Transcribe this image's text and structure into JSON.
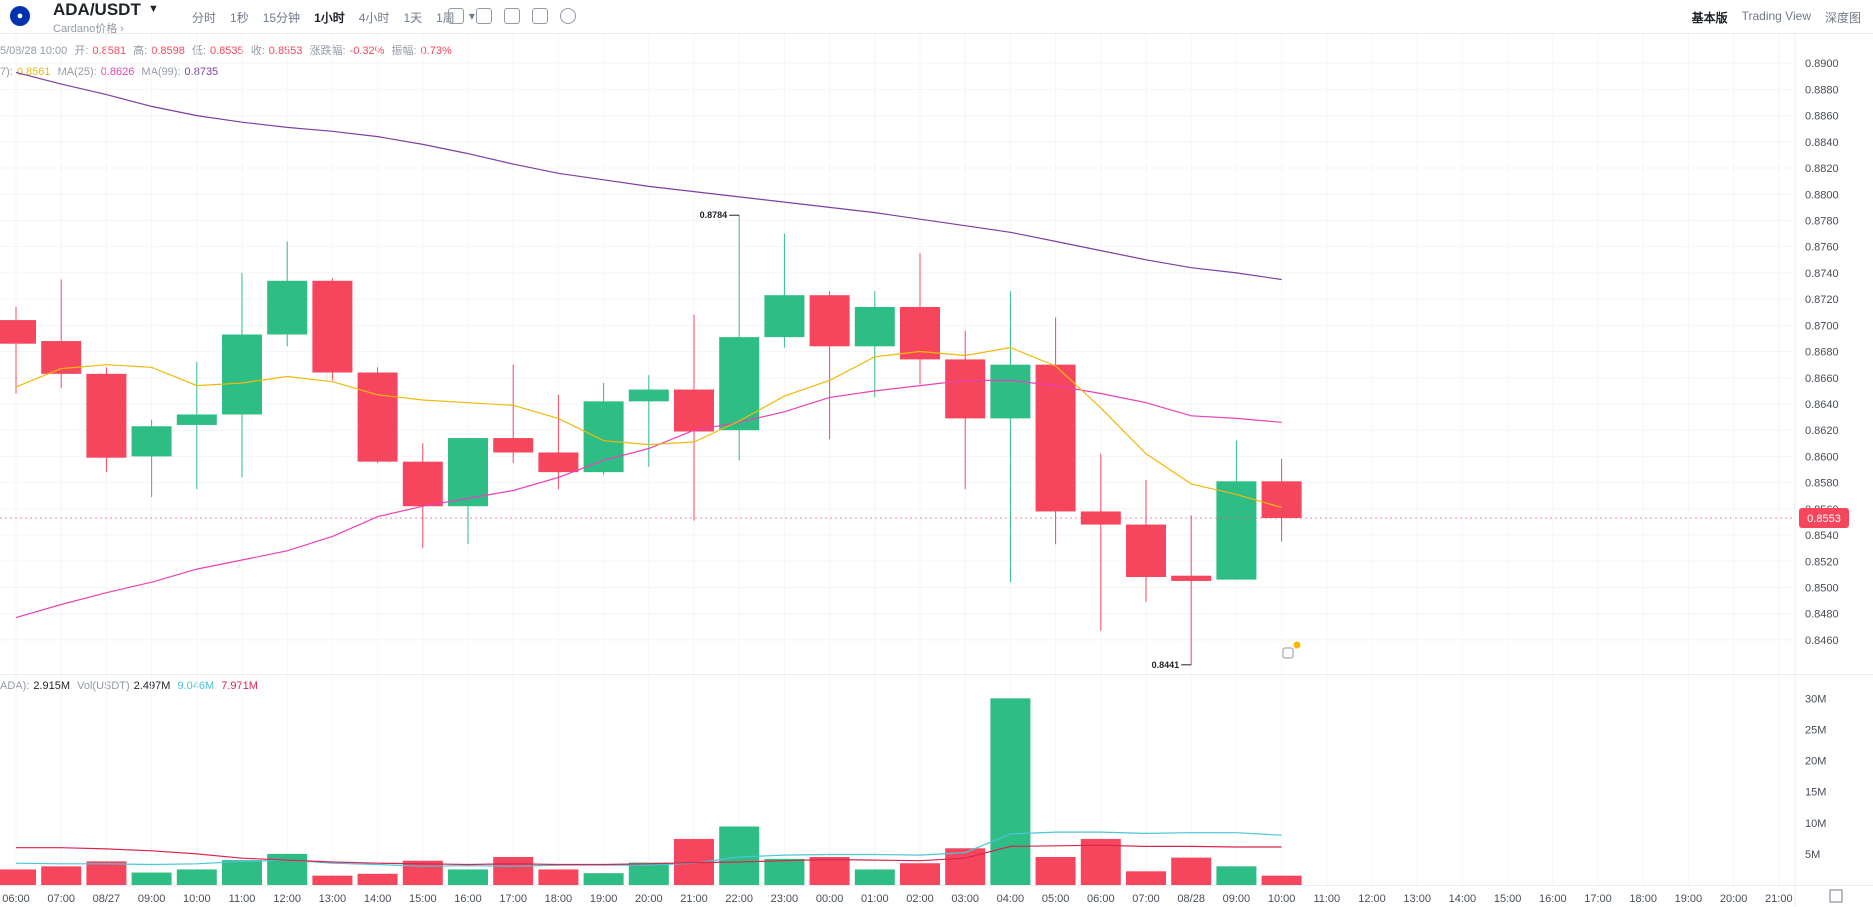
{
  "header": {
    "pair": "ADA/USDT",
    "subtitle": "Cardano价格 ›",
    "intervals": [
      "分时",
      "1秒",
      "15分钟",
      "1小时",
      "4小时",
      "1天",
      "1周"
    ],
    "active_interval": "1小时",
    "more_caret": "▾",
    "views": [
      "基本版",
      "Trading View",
      "深度图"
    ],
    "active_view": "基本版"
  },
  "info": {
    "date": "5/08/28 10:00",
    "open_label": "开:",
    "open": "0.8581",
    "high_label": "高:",
    "high": "0.8598",
    "low_label": "低:",
    "low": "0.8535",
    "close_label": "收:",
    "close": "0.8553",
    "change_label": "涨跌幅:",
    "change": "-0.32%",
    "amp_label": "振幅:",
    "amp": "0.73%"
  },
  "ma": {
    "ma7_label": "7):",
    "ma7": "0.8561",
    "ma25_label": "MA(25):",
    "ma25": "0.8626",
    "ma99_label": "MA(99):",
    "ma99": "0.8735"
  },
  "vol": {
    "label_a": "ADA):",
    "val_a": "2.915M",
    "label_b": "Vol(USDT)",
    "val_b": "2.497M",
    "val_c": "9.046M",
    "val_d": "7.971M"
  },
  "chart_data": {
    "type": "candlestick",
    "up_color": "#2ebd85",
    "down_color": "#f6465d",
    "ma7_color": "#f0b90b",
    "ma25_color": "#eb40b5",
    "ma99_color": "#7b3fa0",
    "volume_ma_colors": [
      "#4cc5d6",
      "#d9244f"
    ],
    "x_ticks": [
      "06:00",
      "07:00",
      "08/27",
      "09:00",
      "10:00",
      "11:00",
      "12:00",
      "13:00",
      "14:00",
      "15:00",
      "16:00",
      "17:00",
      "18:00",
      "19:00",
      "20:00",
      "21:00",
      "22:00",
      "23:00",
      "00:00",
      "01:00",
      "02:00",
      "03:00",
      "04:00",
      "05:00",
      "06:00",
      "07:00",
      "08/28",
      "09:00",
      "10:00",
      "11:00",
      "12:00",
      "13:00",
      "14:00",
      "15:00",
      "16:00",
      "17:00",
      "18:00",
      "19:00",
      "20:00",
      "21:00"
    ],
    "price_ticks": [
      "0.8900",
      "0.8880",
      "0.8860",
      "0.8840",
      "0.8820",
      "0.8800",
      "0.8780",
      "0.8760",
      "0.8740",
      "0.8720",
      "0.8700",
      "0.8680",
      "0.8660",
      "0.8640",
      "0.8620",
      "0.8600",
      "0.8580",
      "0.8560",
      "0.8540",
      "0.8520",
      "0.8500",
      "0.8480",
      "0.8460"
    ],
    "volume_ticks": [
      "30M",
      "25M",
      "20M",
      "15M",
      "10M",
      "5M"
    ],
    "price_range": [
      0.8434,
      0.8907
    ],
    "volume_range": [
      0,
      31.5
    ],
    "candles": [
      {
        "o": 0.8704,
        "h": 0.8714,
        "l": 0.8648,
        "c": 0.8686
      },
      {
        "o": 0.8688,
        "h": 0.8735,
        "l": 0.8652,
        "c": 0.8663
      },
      {
        "o": 0.8663,
        "h": 0.8668,
        "l": 0.8588,
        "c": 0.8599
      },
      {
        "o": 0.86,
        "h": 0.8628,
        "l": 0.8569,
        "c": 0.8623
      },
      {
        "o": 0.8624,
        "h": 0.8672,
        "l": 0.8575,
        "c": 0.8632
      },
      {
        "o": 0.8632,
        "h": 0.874,
        "l": 0.8584,
        "c": 0.8693
      },
      {
        "o": 0.8693,
        "h": 0.8764,
        "l": 0.8684,
        "c": 0.8734
      },
      {
        "o": 0.8734,
        "h": 0.8736,
        "l": 0.8658,
        "c": 0.8664
      },
      {
        "o": 0.8664,
        "h": 0.8668,
        "l": 0.8595,
        "c": 0.8596
      },
      {
        "o": 0.8596,
        "h": 0.861,
        "l": 0.853,
        "c": 0.8562
      },
      {
        "o": 0.8562,
        "h": 0.8614,
        "l": 0.8533,
        "c": 0.8614
      },
      {
        "o": 0.8614,
        "h": 0.867,
        "l": 0.8595,
        "c": 0.8603
      },
      {
        "o": 0.8603,
        "h": 0.8647,
        "l": 0.8575,
        "c": 0.8588
      },
      {
        "o": 0.8588,
        "h": 0.8656,
        "l": 0.8586,
        "c": 0.8642
      },
      {
        "o": 0.8642,
        "h": 0.8662,
        "l": 0.8592,
        "c": 0.8651
      },
      {
        "o": 0.8651,
        "h": 0.8708,
        "l": 0.8551,
        "c": 0.8619
      },
      {
        "o": 0.862,
        "h": 0.8784,
        "l": 0.8597,
        "c": 0.8691
      },
      {
        "o": 0.8691,
        "h": 0.877,
        "l": 0.8683,
        "c": 0.8723
      },
      {
        "o": 0.8723,
        "h": 0.8726,
        "l": 0.8613,
        "c": 0.8684
      },
      {
        "o": 0.8684,
        "h": 0.8726,
        "l": 0.8645,
        "c": 0.8714
      },
      {
        "o": 0.8714,
        "h": 0.8755,
        "l": 0.8655,
        "c": 0.8674
      },
      {
        "o": 0.8674,
        "h": 0.8696,
        "l": 0.8575,
        "c": 0.8629
      },
      {
        "o": 0.8629,
        "h": 0.8726,
        "l": 0.8504,
        "c": 0.867
      },
      {
        "o": 0.867,
        "h": 0.8706,
        "l": 0.8533,
        "c": 0.8558
      },
      {
        "o": 0.8558,
        "h": 0.8602,
        "l": 0.8467,
        "c": 0.8548
      },
      {
        "o": 0.8548,
        "h": 0.8582,
        "l": 0.8489,
        "c": 0.8508
      },
      {
        "o": 0.8509,
        "h": 0.8555,
        "l": 0.8441,
        "c": 0.8505
      },
      {
        "o": 0.8506,
        "h": 0.8612,
        "l": 0.8506,
        "c": 0.8581
      },
      {
        "o": 0.8581,
        "h": 0.8598,
        "l": 0.8535,
        "c": 0.8553
      }
    ],
    "ma7": [
      0.8653,
      0.8667,
      0.867,
      0.8668,
      0.8654,
      0.8656,
      0.8661,
      0.8657,
      0.8647,
      0.8643,
      0.8641,
      0.8639,
      0.8629,
      0.8612,
      0.8609,
      0.8611,
      0.8627,
      0.8646,
      0.8658,
      0.8676,
      0.868,
      0.8677,
      0.8683,
      0.8669,
      0.8637,
      0.8602,
      0.8579,
      0.8571,
      0.8561
    ],
    "ma25": [
      0.8477,
      0.8487,
      0.8496,
      0.8504,
      0.8514,
      0.8521,
      0.8528,
      0.8539,
      0.8554,
      0.8562,
      0.8568,
      0.8574,
      0.8584,
      0.8597,
      0.8606,
      0.862,
      0.8626,
      0.8634,
      0.8645,
      0.865,
      0.8654,
      0.8658,
      0.8658,
      0.8654,
      0.8648,
      0.8641,
      0.8631,
      0.8629,
      0.8626
    ],
    "ma99": [
      0.8893,
      0.8884,
      0.8876,
      0.8867,
      0.886,
      0.8855,
      0.8851,
      0.8848,
      0.8844,
      0.8838,
      0.8831,
      0.8823,
      0.8816,
      0.8811,
      0.8806,
      0.8802,
      0.8798,
      0.8794,
      0.879,
      0.8786,
      0.8781,
      0.8776,
      0.8771,
      0.8764,
      0.8757,
      0.875,
      0.8744,
      0.874,
      0.8735
    ],
    "volumes": [
      2.5,
      3.0,
      3.8,
      2.0,
      2.5,
      4.0,
      5.0,
      1.5,
      1.8,
      3.9,
      2.5,
      4.5,
      2.5,
      1.9,
      3.6,
      7.4,
      9.4,
      4.2,
      4.5,
      2.5,
      3.5,
      5.9,
      30.0,
      4.5,
      7.4,
      2.2,
      4.4,
      3.0,
      1.5
    ],
    "vol_ma_a": [
      3.5,
      3.4,
      3.4,
      3.3,
      3.4,
      3.8,
      4.0,
      3.5,
      3.3,
      3.0,
      3.1,
      3.0,
      3.2,
      3.2,
      3.2,
      3.5,
      4.5,
      4.8,
      4.9,
      4.9,
      4.8,
      5.2,
      8.2,
      8.5,
      8.5,
      8.3,
      8.4,
      8.4,
      8.0
    ],
    "vol_ma_b": [
      6.0,
      6.0,
      5.8,
      5.5,
      5.0,
      4.3,
      4.0,
      3.7,
      3.5,
      3.4,
      3.3,
      3.4,
      3.3,
      3.3,
      3.4,
      3.6,
      3.7,
      3.9,
      4.1,
      4.0,
      3.9,
      4.3,
      6.2,
      6.3,
      6.4,
      6.2,
      6.2,
      6.1,
      6.1
    ],
    "high_label": "0.8784",
    "low_label": "0.8441",
    "last_price": "0.8553"
  }
}
